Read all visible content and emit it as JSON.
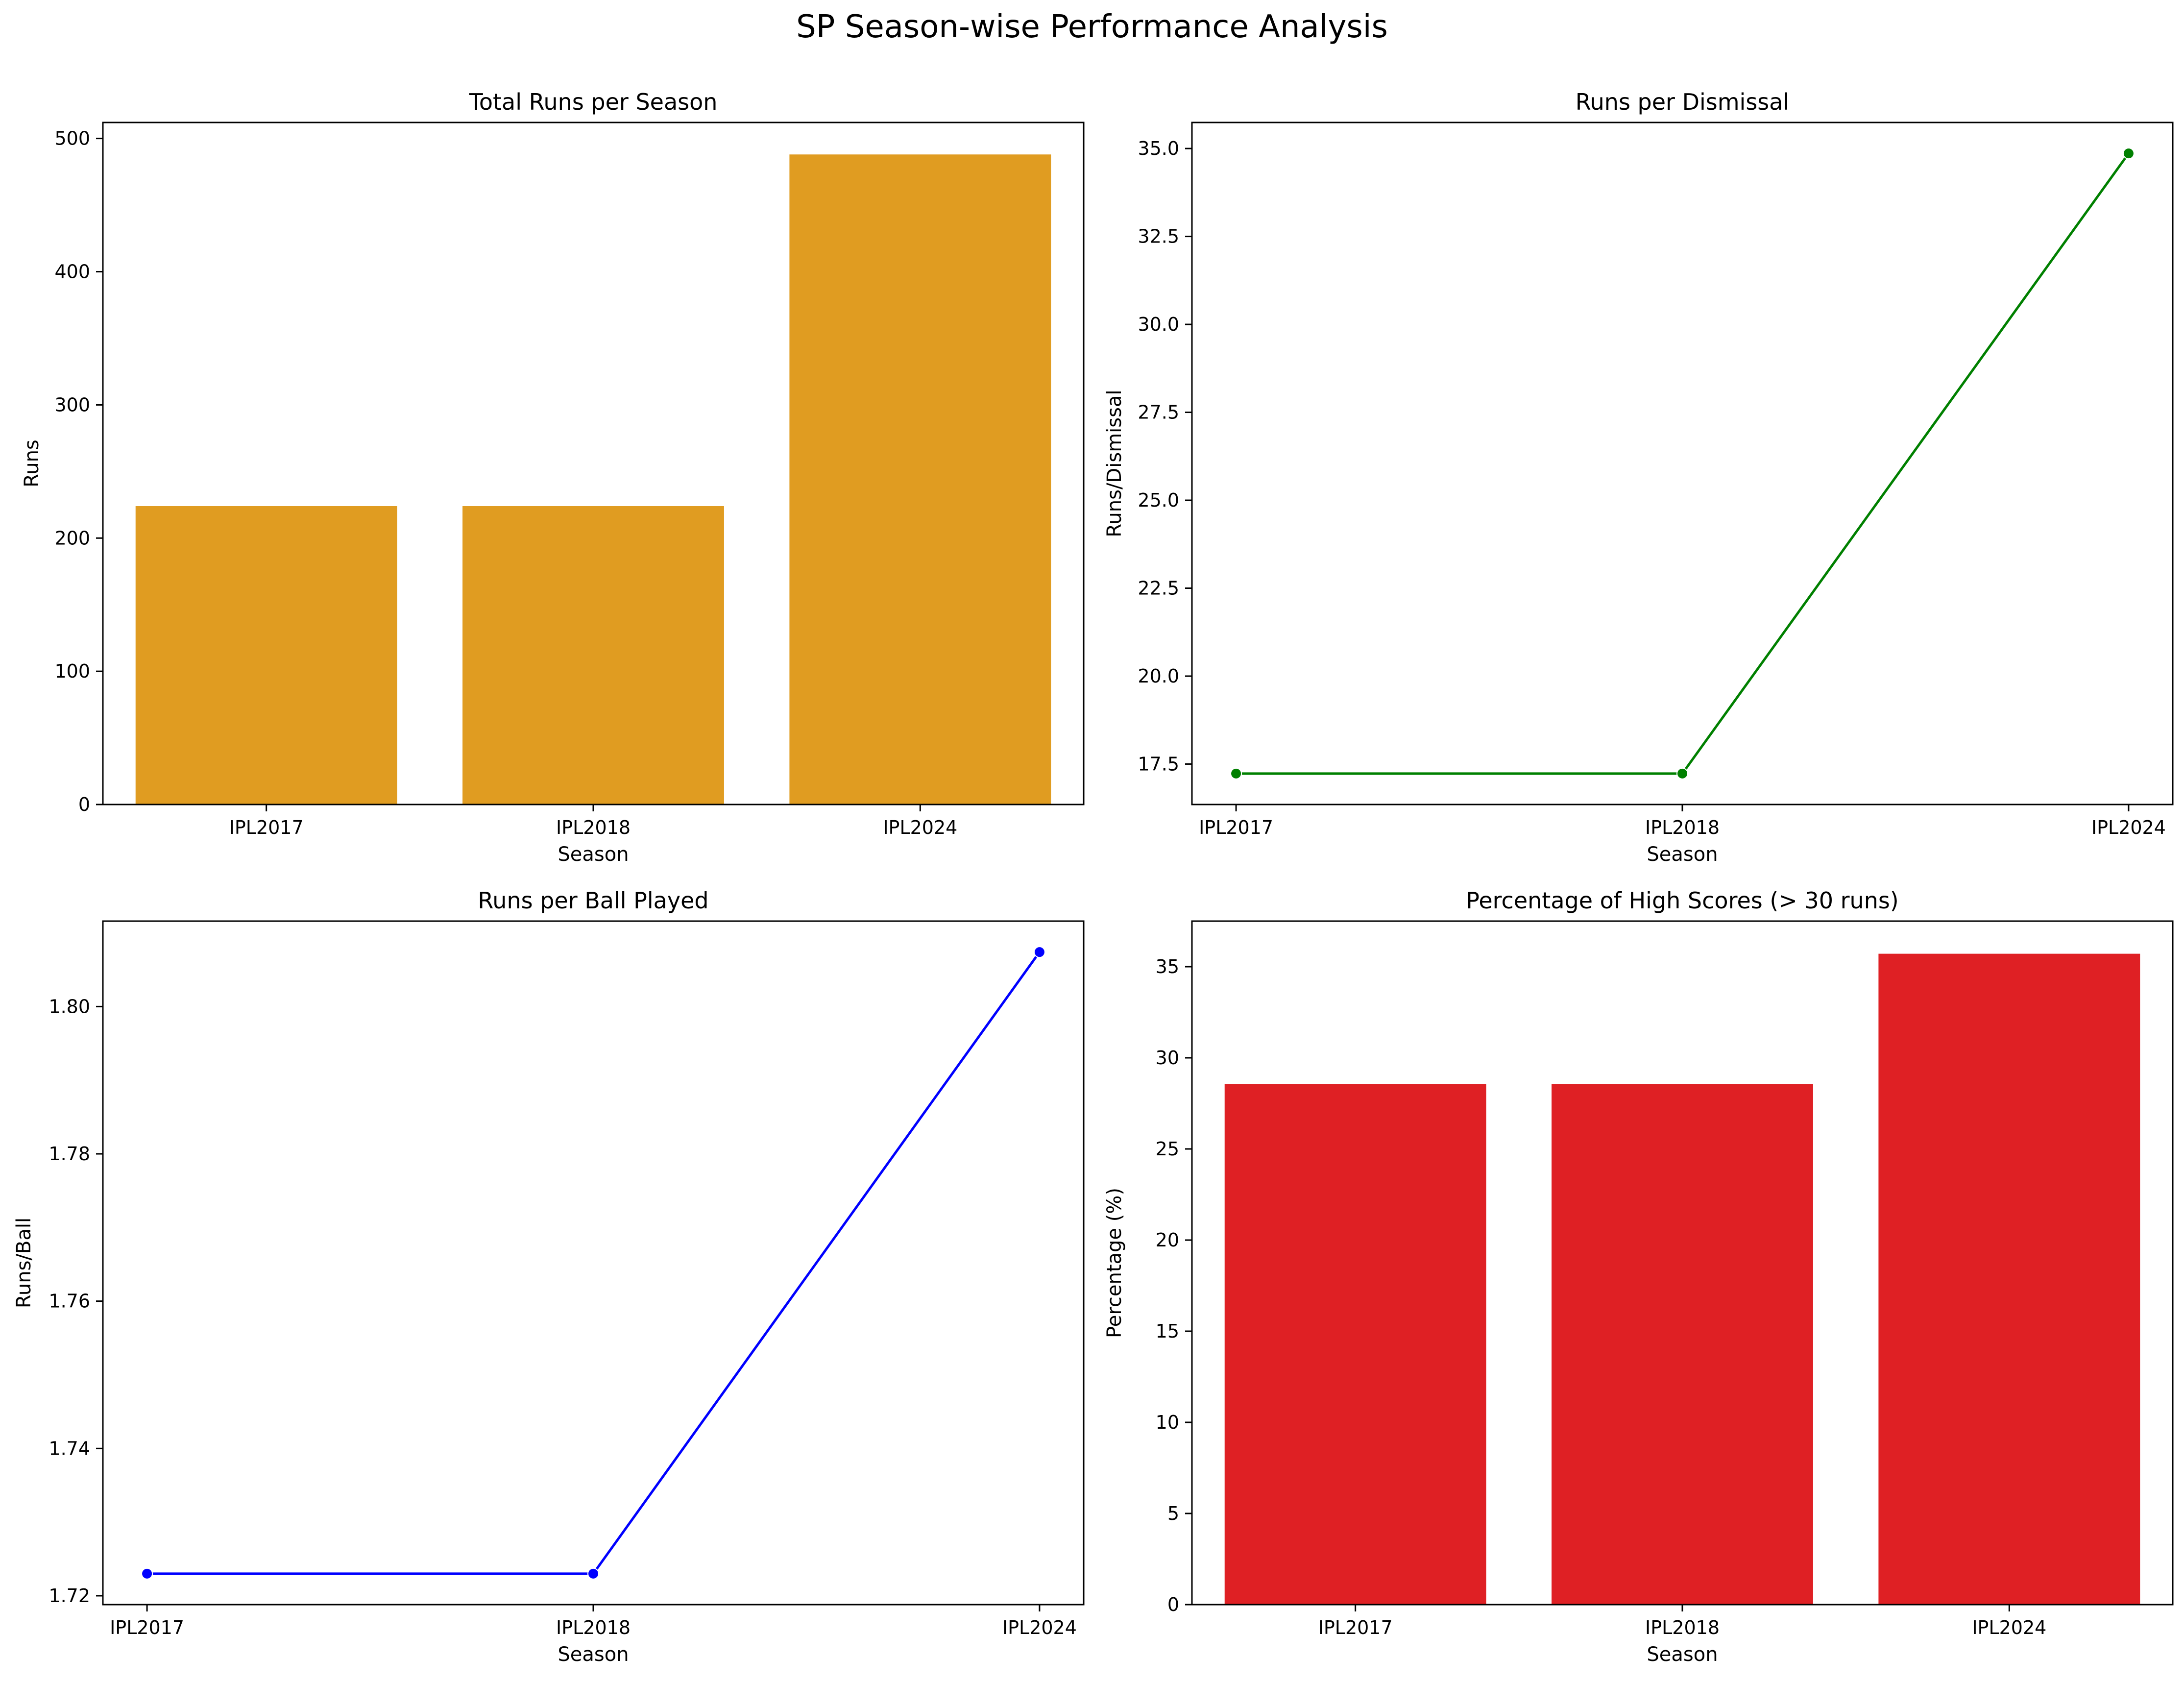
{
  "figure": {
    "title": "SP Season-wise Performance Analysis"
  },
  "chart_data": [
    {
      "type": "bar",
      "title": "Total Runs per Season",
      "xlabel": "Season",
      "ylabel": "Runs",
      "categories": [
        "IPL2017",
        "IPL2018",
        "IPL2024"
      ],
      "values": [
        224,
        224,
        488
      ],
      "ylim": [
        0,
        512
      ],
      "yticks": [
        0,
        100,
        200,
        300,
        400,
        500
      ],
      "ytick_labels": [
        "0",
        "100",
        "200",
        "300",
        "400",
        "500"
      ],
      "color": "#e09c21",
      "grid": false
    },
    {
      "type": "line",
      "title": "Runs per Dismissal",
      "xlabel": "Season",
      "ylabel": "Runs/Dismissal",
      "categories": [
        "IPL2017",
        "IPL2018",
        "IPL2024"
      ],
      "values": [
        17.23,
        17.23,
        34.86
      ],
      "ylim": [
        16.35,
        35.74
      ],
      "yticks": [
        17.5,
        20.0,
        22.5,
        25.0,
        27.5,
        30.0,
        32.5,
        35.0
      ],
      "ytick_labels": [
        "17.5",
        "20.0",
        "22.5",
        "25.0",
        "27.5",
        "30.0",
        "32.5",
        "35.0"
      ],
      "color": "#008000",
      "marker": "circle",
      "grid": false
    },
    {
      "type": "line",
      "title": "Runs per Ball Played",
      "xlabel": "Season",
      "ylabel": "Runs/Ball",
      "categories": [
        "IPL2017",
        "IPL2018",
        "IPL2024"
      ],
      "values": [
        1.723,
        1.723,
        1.8074
      ],
      "ylim": [
        1.7188,
        1.8116
      ],
      "yticks": [
        1.72,
        1.74,
        1.76,
        1.78,
        1.8
      ],
      "ytick_labels": [
        "1.72",
        "1.74",
        "1.76",
        "1.78",
        "1.80"
      ],
      "color": "#0000ff",
      "marker": "circle",
      "grid": false
    },
    {
      "type": "bar",
      "title": "Percentage of High Scores (> 30 runs)",
      "xlabel": "Season",
      "ylabel": "Percentage (%)",
      "categories": [
        "IPL2017",
        "IPL2018",
        "IPL2024"
      ],
      "values": [
        28.57,
        28.57,
        35.71
      ],
      "ylim": [
        0,
        37.5
      ],
      "yticks": [
        0,
        5,
        10,
        15,
        20,
        25,
        30,
        35
      ],
      "ytick_labels": [
        "0",
        "5",
        "10",
        "15",
        "20",
        "25",
        "30",
        "35"
      ],
      "color": "#df2024",
      "grid": false
    }
  ]
}
